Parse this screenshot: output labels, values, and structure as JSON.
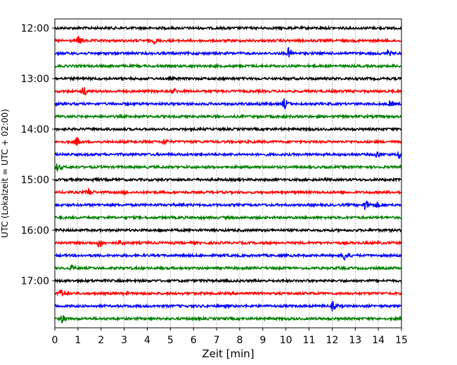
{
  "chart_data": {
    "type": "line",
    "title": "",
    "xlabel": "Zeit  [min]",
    "ylabel": "UTC (Lokalzeit = UTC + 02:00)",
    "xlim": [
      0,
      15
    ],
    "x_ticks": [
      "0",
      "1",
      "2",
      "3",
      "4",
      "5",
      "6",
      "7",
      "8",
      "9",
      "10",
      "11",
      "12",
      "13",
      "14",
      "15"
    ],
    "y_tick_labels": [
      "12:00",
      "13:00",
      "14:00",
      "15:00",
      "16:00",
      "17:00"
    ],
    "grid": "vertical dotted at each minute",
    "row_interval_minutes": 15,
    "colors": {
      "cycle": [
        "#000000",
        "#ff0000",
        "#0000ff",
        "#008000"
      ]
    },
    "traces": [
      {
        "start": "12:00",
        "color": "#000000",
        "events": []
      },
      {
        "start": "12:15",
        "color": "#ff0000",
        "events": [
          {
            "t": 1.0,
            "amp": 9
          },
          {
            "t": 4.3,
            "amp": 5
          }
        ]
      },
      {
        "start": "12:30",
        "color": "#0000ff",
        "events": [
          {
            "t": 10.1,
            "amp": 9
          },
          {
            "t": 14.4,
            "amp": 6
          }
        ]
      },
      {
        "start": "12:45",
        "color": "#008000",
        "events": []
      },
      {
        "start": "13:00",
        "color": "#000000",
        "events": []
      },
      {
        "start": "13:15",
        "color": "#ff0000",
        "events": [
          {
            "t": 1.2,
            "amp": 9
          },
          {
            "t": 5.1,
            "amp": 6
          }
        ]
      },
      {
        "start": "13:30",
        "color": "#0000ff",
        "events": [
          {
            "t": 8.8,
            "amp": 4
          },
          {
            "t": 9.9,
            "amp": 10
          },
          {
            "t": 14.5,
            "amp": 6
          }
        ]
      },
      {
        "start": "13:45",
        "color": "#008000",
        "events": []
      },
      {
        "start": "14:00",
        "color": "#000000",
        "events": [
          {
            "t": 11.0,
            "amp": 3
          }
        ]
      },
      {
        "start": "14:15",
        "color": "#ff0000",
        "events": [
          {
            "t": 0.9,
            "amp": 9
          },
          {
            "t": 4.7,
            "amp": 6
          },
          {
            "t": 8.5,
            "amp": 3
          }
        ]
      },
      {
        "start": "14:30",
        "color": "#0000ff",
        "events": [
          {
            "t": 13.9,
            "amp": 7
          },
          {
            "t": 14.9,
            "amp": 7
          }
        ]
      },
      {
        "start": "14:45",
        "color": "#008000",
        "events": [
          {
            "t": 0.1,
            "amp": 7
          }
        ]
      },
      {
        "start": "15:00",
        "color": "#000000",
        "events": [
          {
            "t": 1.6,
            "amp": 4
          },
          {
            "t": 2.7,
            "amp": 3
          }
        ]
      },
      {
        "start": "15:15",
        "color": "#ff0000",
        "events": [
          {
            "t": 1.4,
            "amp": 9
          },
          {
            "t": 3.0,
            "amp": 5
          },
          {
            "t": 8.0,
            "amp": 2
          }
        ]
      },
      {
        "start": "15:30",
        "color": "#0000ff",
        "events": [
          {
            "t": 13.4,
            "amp": 10
          },
          {
            "t": 13.9,
            "amp": 6
          }
        ]
      },
      {
        "start": "15:45",
        "color": "#008000",
        "events": []
      },
      {
        "start": "16:00",
        "color": "#000000",
        "events": [
          {
            "t": 0.2,
            "amp": 3
          },
          {
            "t": 4.5,
            "amp": 4
          }
        ]
      },
      {
        "start": "16:15",
        "color": "#ff0000",
        "events": [
          {
            "t": 1.9,
            "amp": 9
          },
          {
            "t": 2.8,
            "amp": 6
          }
        ]
      },
      {
        "start": "16:30",
        "color": "#0000ff",
        "events": [
          {
            "t": 12.5,
            "amp": 10
          }
        ]
      },
      {
        "start": "16:45",
        "color": "#008000",
        "events": [
          {
            "t": 0.7,
            "amp": 6
          }
        ]
      },
      {
        "start": "17:00",
        "color": "#000000",
        "events": [
          {
            "t": 15.0,
            "amp": 3
          }
        ]
      },
      {
        "start": "17:15",
        "color": "#ff0000",
        "events": [
          {
            "t": 0.2,
            "amp": 8
          },
          {
            "t": 3.0,
            "amp": 5
          }
        ]
      },
      {
        "start": "17:30",
        "color": "#0000ff",
        "events": [
          {
            "t": 12.0,
            "amp": 8
          }
        ]
      },
      {
        "start": "17:45",
        "color": "#008000",
        "events": [
          {
            "t": 0.3,
            "amp": 7
          }
        ]
      }
    ]
  }
}
